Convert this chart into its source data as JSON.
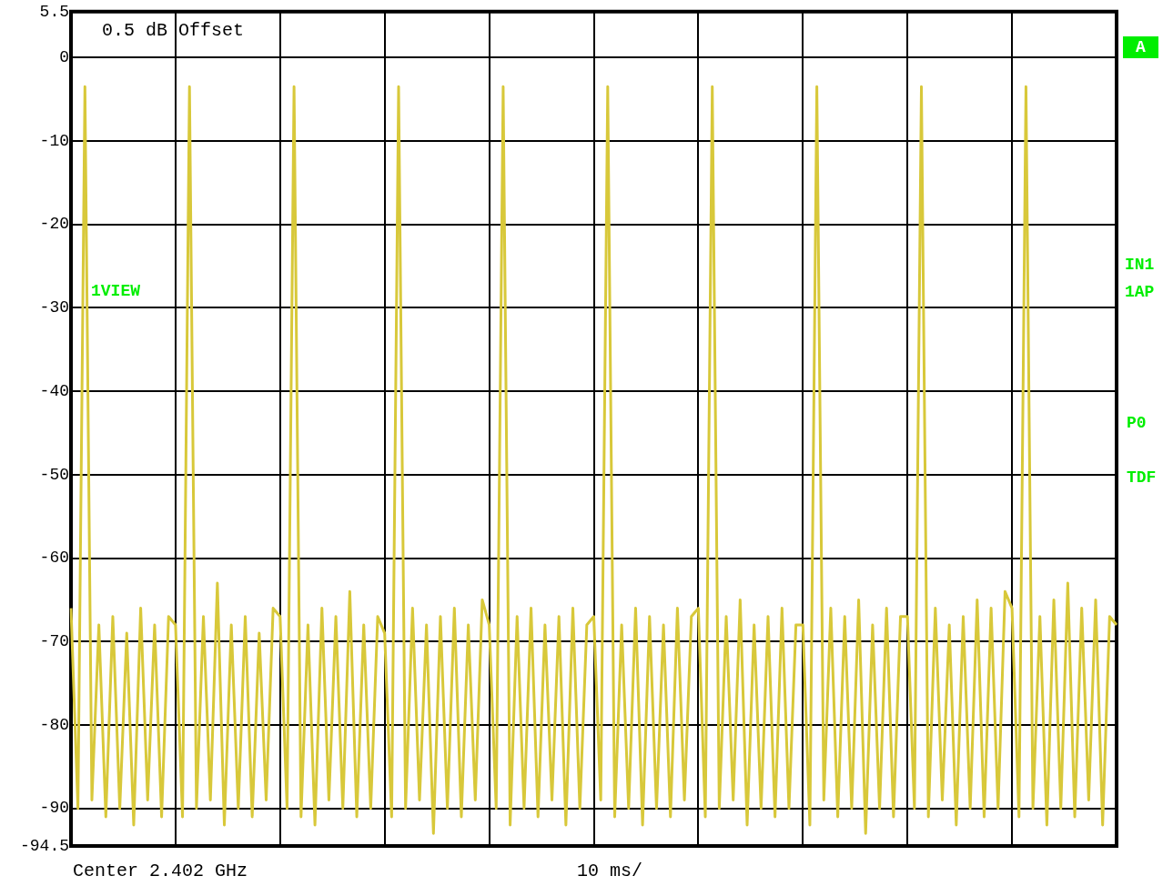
{
  "chart_data": {
    "type": "line",
    "annotations": [
      "0.5 dB Offset",
      "1VIEW",
      "A",
      "IN1",
      "1AP",
      "P0",
      "TDF",
      "Center 2.402 GHz",
      "10 ms/"
    ],
    "categories": [
      null,
      null,
      null,
      null,
      null,
      null,
      null,
      null,
      null,
      null,
      null,
      null,
      null,
      null,
      null,
      null,
      null,
      null,
      null,
      null,
      null,
      null,
      null,
      null,
      null,
      null,
      null,
      null,
      null,
      null,
      null,
      null,
      null,
      null,
      null,
      null,
      null,
      null,
      null,
      null,
      null,
      null,
      null,
      null,
      null,
      null,
      null,
      null,
      null,
      null,
      null,
      null,
      null,
      null,
      null,
      null,
      null,
      null,
      null,
      null,
      null,
      null,
      null,
      null,
      null,
      null,
      null,
      null,
      null,
      null,
      null,
      null,
      null,
      null,
      null,
      null,
      null,
      null,
      null,
      null,
      null,
      null,
      null,
      null,
      null,
      null,
      null,
      null,
      null,
      null,
      null,
      null,
      null,
      null,
      null,
      null,
      null,
      null,
      null,
      null,
      null,
      null,
      null,
      null,
      null,
      null,
      null,
      null,
      null,
      null,
      null,
      null,
      null,
      null,
      null,
      null,
      null,
      null,
      null,
      null,
      null,
      null,
      null,
      null,
      null,
      null,
      null,
      null,
      null,
      null,
      null,
      null,
      null,
      null,
      null,
      null,
      null,
      null,
      null,
      null,
      null,
      null,
      null,
      null,
      null,
      null,
      null,
      null,
      null,
      null,
      null
    ],
    "series": [
      {
        "color": "#d8c83a",
        "values": [
          -66,
          -90,
          -3.5,
          -89,
          -68,
          -91,
          -67,
          -90,
          -69,
          -92,
          -66,
          -89,
          -68,
          -91,
          -67,
          -68,
          -91,
          -3.5,
          -90,
          -67,
          -89,
          -63,
          -92,
          -68,
          -90,
          -67,
          -91,
          -69,
          -89,
          -66,
          -67,
          -90,
          -3.5,
          -91,
          -68,
          -92,
          -66,
          -89,
          -67,
          -90,
          -64,
          -91,
          -68,
          -90,
          -67,
          -69,
          -91,
          -3.5,
          -90,
          -66,
          -89,
          -68,
          -93,
          -67,
          -90,
          -66,
          -91,
          -68,
          -89,
          -65,
          -68,
          -90,
          -3.5,
          -92,
          -67,
          -90,
          -66,
          -91,
          -68,
          -89,
          -67,
          -92,
          -66,
          -90,
          -68,
          -67,
          -89,
          -3.5,
          -91,
          -68,
          -90,
          -66,
          -92,
          -67,
          -90,
          -68,
          -91,
          -66,
          -89,
          -67,
          -66,
          -91,
          -3.5,
          -90,
          -67,
          -89,
          -65,
          -92,
          -68,
          -90,
          -67,
          -91,
          -66,
          -90,
          -68,
          -68,
          -92,
          -3.5,
          -89,
          -66,
          -91,
          -67,
          -90,
          -65,
          -93,
          -68,
          -90,
          -66,
          -91,
          -67,
          -67,
          -90,
          -3.5,
          -91,
          -66,
          -89,
          -68,
          -92,
          -67,
          -90,
          -65,
          -91,
          -66,
          -90,
          -64,
          -66,
          -91,
          -3.5,
          -90,
          -67,
          -92,
          -65,
          -90,
          -63,
          -91,
          -66,
          -89,
          -65,
          -92,
          -67,
          -68
        ]
      }
    ],
    "ylim": [
      -94.5,
      5.5
    ],
    "yticks": [
      5.5,
      0,
      -10,
      -20,
      -30,
      -40,
      -50,
      -60,
      -70,
      -80,
      -90,
      -94.5
    ],
    "grid": true,
    "legend": false,
    "marker": "none",
    "line_style": "solid"
  }
}
